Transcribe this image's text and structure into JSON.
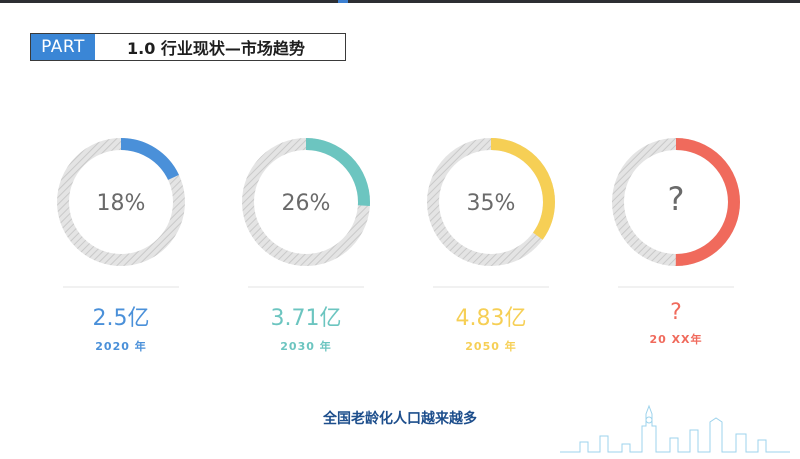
{
  "header": {
    "part_label": "PART",
    "title": "1.0 行业现状—市场趋势"
  },
  "rings": [
    {
      "pct_text": "18%",
      "fraction": 0.18,
      "color": "#4a90d9",
      "amount": "2.5亿",
      "year": "2020 年"
    },
    {
      "pct_text": "26%",
      "fraction": 0.26,
      "color": "#6cc5c0",
      "amount": "3.71亿",
      "year": "2030 年"
    },
    {
      "pct_text": "35%",
      "fraction": 0.35,
      "color": "#f6cf55",
      "amount": "4.83亿",
      "year": "2050 年"
    },
    {
      "pct_text": "?",
      "fraction": 0.5,
      "color": "#f06a5c",
      "amount": "?",
      "year": "20 XX年"
    }
  ],
  "footer": {
    "text": "全国老龄化人口越来越多"
  },
  "colors": {
    "track": "#d9d9d9",
    "accent": "#3a86d6"
  }
}
